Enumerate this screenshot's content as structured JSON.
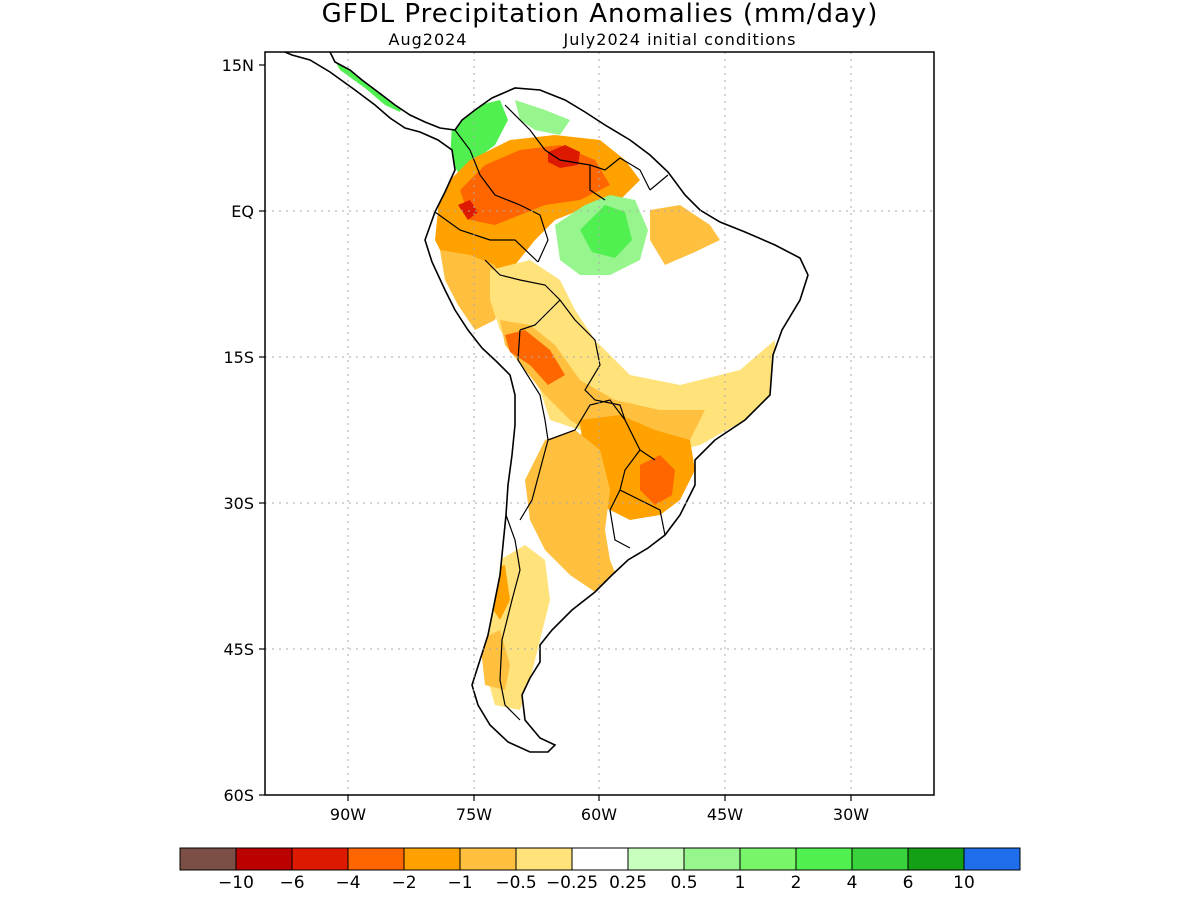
{
  "title": "GFDL Precipitation Anomalies (mm/day)",
  "subtitle_left": "Aug2024",
  "subtitle_right": "July2024 initial conditions",
  "map": {
    "lon_range": [
      -102,
      -22
    ],
    "lat_range": [
      -60,
      15
    ],
    "x_ticks": [
      "90W",
      "75W",
      "60W",
      "45W",
      "30W"
    ],
    "y_ticks": [
      "15N",
      "EQ",
      "15S",
      "30S",
      "45S",
      "60S"
    ],
    "gridlines": true,
    "anomaly_regions": [
      {
        "area": "Central America / Caribbean coast",
        "class": "wet",
        "range": "2 to 6"
      },
      {
        "area": "NW Colombia",
        "class": "wet",
        "range": "2 to 6"
      },
      {
        "area": "Venezuela / Guyana",
        "class": "dry",
        "range": "-6 to -1"
      },
      {
        "area": "Central Amazon",
        "class": "wet",
        "range": "0.5 to 4"
      },
      {
        "area": "Western Amazon / Andes",
        "class": "dry",
        "range": "-4 to -0.5"
      },
      {
        "area": "Bolivia / Paraguay",
        "class": "dry",
        "range": "-4 to -0.5"
      },
      {
        "area": "Southern Brazil",
        "class": "dry",
        "range": "-4 to -1"
      },
      {
        "area": "Argentina / Chile",
        "class": "dry",
        "range": "-2 to -0.25"
      }
    ]
  },
  "colorbar": {
    "colors": [
      "#7b4f45",
      "#bb0000",
      "#dd1a00",
      "#ff6600",
      "#ffa200",
      "#ffc040",
      "#ffe27a",
      "#ffffff",
      "#c8ffbe",
      "#96f58c",
      "#78f569",
      "#50f050",
      "#37d23c",
      "#14a014",
      "#1e6eeb"
    ],
    "labels": [
      "-10",
      "-6",
      "-4",
      "-2",
      "-1",
      "-0.5",
      "-0.25",
      "0.25",
      "0.5",
      "1",
      "2",
      "4",
      "6",
      "10"
    ]
  }
}
